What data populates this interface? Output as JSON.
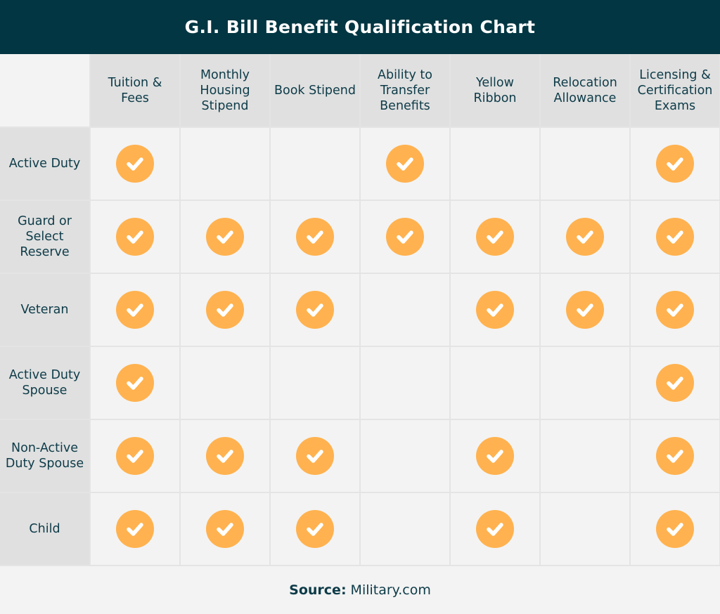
{
  "title": "G.I. Bill Benefit Qualification Chart",
  "colors": {
    "header_bg": "#013642",
    "check": "#ffb24f",
    "text": "#0d3b48"
  },
  "chart_data": {
    "type": "table",
    "title": "G.I. Bill Benefit Qualification Chart",
    "columns": [
      "Tuition & Fees",
      "Monthly Housing Stipend",
      "Book Stipend",
      "Ability to Transfer Benefits",
      "Yellow Ribbon",
      "Relocation Allowance",
      "Licensing & Certification Exams"
    ],
    "rows": [
      {
        "label": "Active Duty",
        "values": [
          true,
          false,
          false,
          true,
          false,
          false,
          true
        ]
      },
      {
        "label": "Guard or Select Reserve",
        "values": [
          true,
          true,
          true,
          true,
          true,
          true,
          true
        ]
      },
      {
        "label": "Veteran",
        "values": [
          true,
          true,
          true,
          false,
          true,
          true,
          true
        ]
      },
      {
        "label": "Active Duty Spouse",
        "values": [
          true,
          false,
          false,
          false,
          false,
          false,
          true
        ]
      },
      {
        "label": "Non-Active Duty Spouse",
        "values": [
          true,
          true,
          true,
          false,
          true,
          false,
          true
        ]
      },
      {
        "label": "Child",
        "values": [
          true,
          true,
          true,
          false,
          true,
          false,
          true
        ]
      }
    ],
    "mark_icon": "check-circle-icon"
  },
  "footer": {
    "label": "Source:",
    "value": "Military.com"
  }
}
